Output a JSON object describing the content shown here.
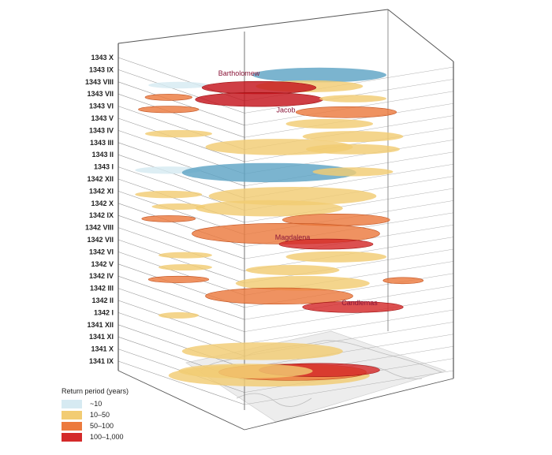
{
  "chart_data": {
    "type": "3d-ellipse-stack",
    "title": "",
    "months": [
      "1343 X",
      "1343 IX",
      "1343 VIII",
      "1343 VII",
      "1343 VI",
      "1343 V",
      "1343 IV",
      "1343 III",
      "1343 II",
      "1343 I",
      "1342 XII",
      "1342 XI",
      "1342 X",
      "1342 IX",
      "1342 VIII",
      "1342 VII",
      "1342 VI",
      "1342 V",
      "1342 IV",
      "1342 III",
      "1342 II",
      "1342 I",
      "1341 XII",
      "1341 XI",
      "1341 X",
      "1341 IX"
    ],
    "event_labels": [
      {
        "text": "Bartholomew",
        "month": "1343 VIII"
      },
      {
        "text": "Jacob",
        "month": "1343 VI"
      },
      {
        "text": "Magdalena",
        "month": "1342 VII"
      },
      {
        "text": "Candlemas",
        "month": "1342 II"
      }
    ],
    "legend": {
      "title": "Return period (years)",
      "categories": [
        {
          "label": "~10",
          "color": "#d6eaf2"
        },
        {
          "label": "10–50",
          "color": "#f2cc73"
        },
        {
          "label": "50–100",
          "color": "#ec7a3e"
        },
        {
          "label": "100–1,000",
          "color": "#d42a2a"
        }
      ]
    },
    "events": [
      {
        "month": "1343 IX",
        "cat": 0,
        "cx": 0.6,
        "dz": 0.48,
        "rx": 0.2,
        "dark": true
      },
      {
        "month": "1343 VIII",
        "cat": 1,
        "cx": 0.57,
        "dz": 0.4,
        "rx": 0.16
      },
      {
        "month": "1343 VIII",
        "cat": 0,
        "cx": 0.18,
        "dz": 0.3,
        "rx": 0.09
      },
      {
        "month": "1343 VIII",
        "cat": 3,
        "cx": 0.42,
        "dz": 0.52,
        "rx": 0.17,
        "dark": true
      },
      {
        "month": "1343 VII",
        "cat": 2,
        "cx": 0.15,
        "dz": 0.3,
        "rx": 0.07
      },
      {
        "month": "1343 VII",
        "cat": 3,
        "cx": 0.42,
        "dz": 0.5,
        "rx": 0.19,
        "dark": true
      },
      {
        "month": "1343 VII",
        "cat": 1,
        "cx": 0.7,
        "dz": 0.42,
        "rx": 0.1
      },
      {
        "month": "1343 VI",
        "cat": 2,
        "cx": 0.15,
        "dz": 0.3,
        "rx": 0.09
      },
      {
        "month": "1343 VI",
        "cat": 2,
        "cx": 0.68,
        "dz": 0.55,
        "rx": 0.15
      },
      {
        "month": "1343 V",
        "cat": 1,
        "cx": 0.63,
        "dz": 0.5,
        "rx": 0.13
      },
      {
        "month": "1343 IV",
        "cat": 1,
        "cx": 0.18,
        "dz": 0.3,
        "rx": 0.1
      },
      {
        "month": "1343 IV",
        "cat": 1,
        "cx": 0.7,
        "dz": 0.55,
        "rx": 0.15
      },
      {
        "month": "1343 III",
        "cat": 1,
        "cx": 0.48,
        "dz": 0.4,
        "rx": 0.22
      },
      {
        "month": "1343 III",
        "cat": 1,
        "cx": 0.7,
        "dz": 0.6,
        "rx": 0.14
      },
      {
        "month": "1343 I",
        "cat": 0,
        "cx": 0.15,
        "dz": 0.3,
        "rx": 0.1
      },
      {
        "month": "1343 I",
        "cat": 0,
        "cx": 0.45,
        "dz": 0.52,
        "rx": 0.26,
        "dark": true
      },
      {
        "month": "1343 I",
        "cat": 1,
        "cx": 0.7,
        "dz": 0.45,
        "rx": 0.12
      },
      {
        "month": "1342 XI",
        "cat": 1,
        "cx": 0.15,
        "dz": 0.3,
        "rx": 0.1
      },
      {
        "month": "1342 XI",
        "cat": 1,
        "cx": 0.52,
        "dz": 0.45,
        "rx": 0.25
      },
      {
        "month": "1342 X",
        "cat": 1,
        "cx": 0.18,
        "dz": 0.3,
        "rx": 0.08
      },
      {
        "month": "1342 X",
        "cat": 1,
        "cx": 0.45,
        "dz": 0.45,
        "rx": 0.22
      },
      {
        "month": "1342 IX",
        "cat": 2,
        "cx": 0.15,
        "dz": 0.3,
        "rx": 0.08
      },
      {
        "month": "1342 IX",
        "cat": 2,
        "cx": 0.65,
        "dz": 0.4,
        "rx": 0.16
      },
      {
        "month": "1342 VIII",
        "cat": 2,
        "cx": 0.5,
        "dz": 0.55,
        "rx": 0.28
      },
      {
        "month": "1342 VII",
        "cat": 3,
        "cx": 0.62,
        "dz": 0.4,
        "rx": 0.14
      },
      {
        "month": "1342 VI",
        "cat": 1,
        "cx": 0.2,
        "dz": 0.3,
        "rx": 0.08
      },
      {
        "month": "1342 VI",
        "cat": 1,
        "cx": 0.65,
        "dz": 0.45,
        "rx": 0.15
      },
      {
        "month": "1342 V",
        "cat": 1,
        "cx": 0.2,
        "dz": 0.3,
        "rx": 0.08
      },
      {
        "month": "1342 V",
        "cat": 1,
        "cx": 0.52,
        "dz": 0.55,
        "rx": 0.14
      },
      {
        "month": "1342 IV",
        "cat": 2,
        "cx": 0.18,
        "dz": 0.3,
        "rx": 0.09
      },
      {
        "month": "1342 IV",
        "cat": 1,
        "cx": 0.55,
        "dz": 0.65,
        "rx": 0.2
      },
      {
        "month": "1342 IV",
        "cat": 2,
        "cx": 0.85,
        "dz": 0.4,
        "rx": 0.06
      },
      {
        "month": "1342 III",
        "cat": 2,
        "cx": 0.48,
        "dz": 0.7,
        "rx": 0.22
      },
      {
        "month": "1342 II",
        "cat": 3,
        "cx": 0.7,
        "dz": 0.6,
        "rx": 0.15
      },
      {
        "month": "1342 I",
        "cat": 1,
        "cx": 0.18,
        "dz": 0.25,
        "rx": 0.06
      },
      {
        "month": "1341 XI",
        "cat": 1,
        "cx": 0.43,
        "dz": 1.3,
        "rx": 0.24
      },
      {
        "month": "1341 IX",
        "cat": 1,
        "cx": 0.45,
        "dz": 1.3,
        "rx": 0.3
      },
      {
        "month": "1341 IX",
        "cat": 2,
        "cx": 0.52,
        "dz": 1.0,
        "rx": 0.22
      },
      {
        "month": "1341 IX",
        "cat": 3,
        "cx": 0.6,
        "dz": 0.8,
        "rx": 0.18
      },
      {
        "month": "1341 IX",
        "cat": 1,
        "cx": 0.38,
        "dz": 0.9,
        "rx": 0.2
      }
    ]
  }
}
